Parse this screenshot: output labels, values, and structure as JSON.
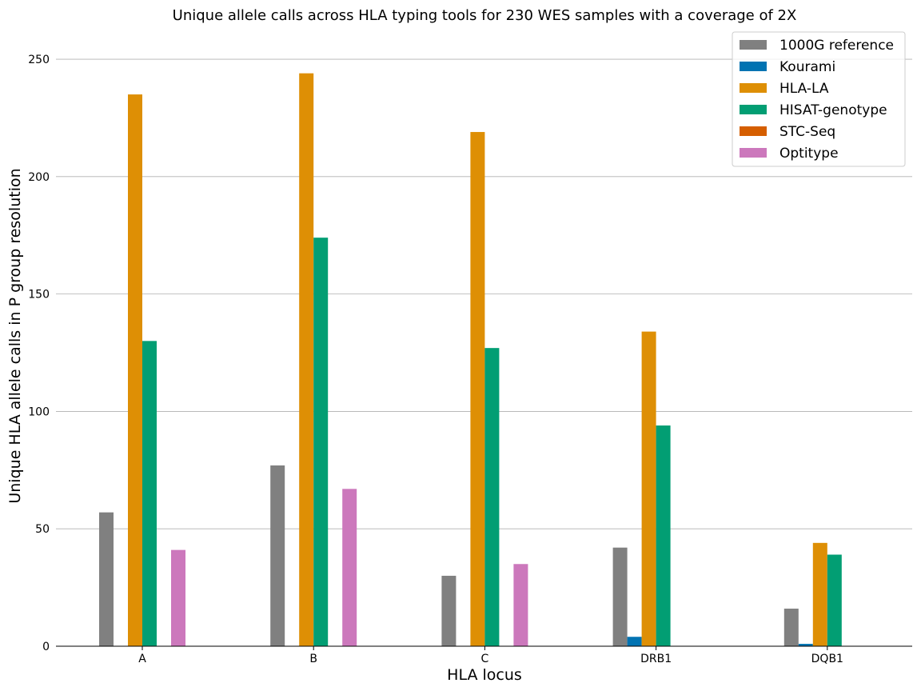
{
  "chart_data": {
    "type": "bar",
    "title": "Unique allele calls across HLA typing tools for 230 WES samples with a coverage of 2X",
    "xlabel": "HLA locus",
    "ylabel": "Unique HLA allele calls in P group resolution",
    "categories": [
      "A",
      "B",
      "C",
      "DRB1",
      "DQB1"
    ],
    "ylim": [
      0,
      265
    ],
    "yticks": [
      0,
      50,
      100,
      150,
      200,
      250
    ],
    "grid": "y",
    "legend_position": "top-right",
    "series": [
      {
        "name": "1000G reference",
        "color": "#808080",
        "values": [
          57,
          77,
          30,
          42,
          16
        ]
      },
      {
        "name": "Kourami",
        "color": "#0173b2",
        "values": [
          0,
          0,
          0,
          4,
          1
        ]
      },
      {
        "name": "HLA-LA",
        "color": "#de8f05",
        "values": [
          235,
          244,
          219,
          134,
          44
        ]
      },
      {
        "name": "HISAT-genotype",
        "color": "#029e73",
        "values": [
          130,
          174,
          127,
          94,
          39
        ]
      },
      {
        "name": "STC-Seq",
        "color": "#d55e00",
        "values": [
          0,
          0,
          0,
          0,
          0
        ]
      },
      {
        "name": "Optitype",
        "color": "#cc78bc",
        "values": [
          41,
          67,
          35,
          0,
          0
        ]
      }
    ]
  }
}
